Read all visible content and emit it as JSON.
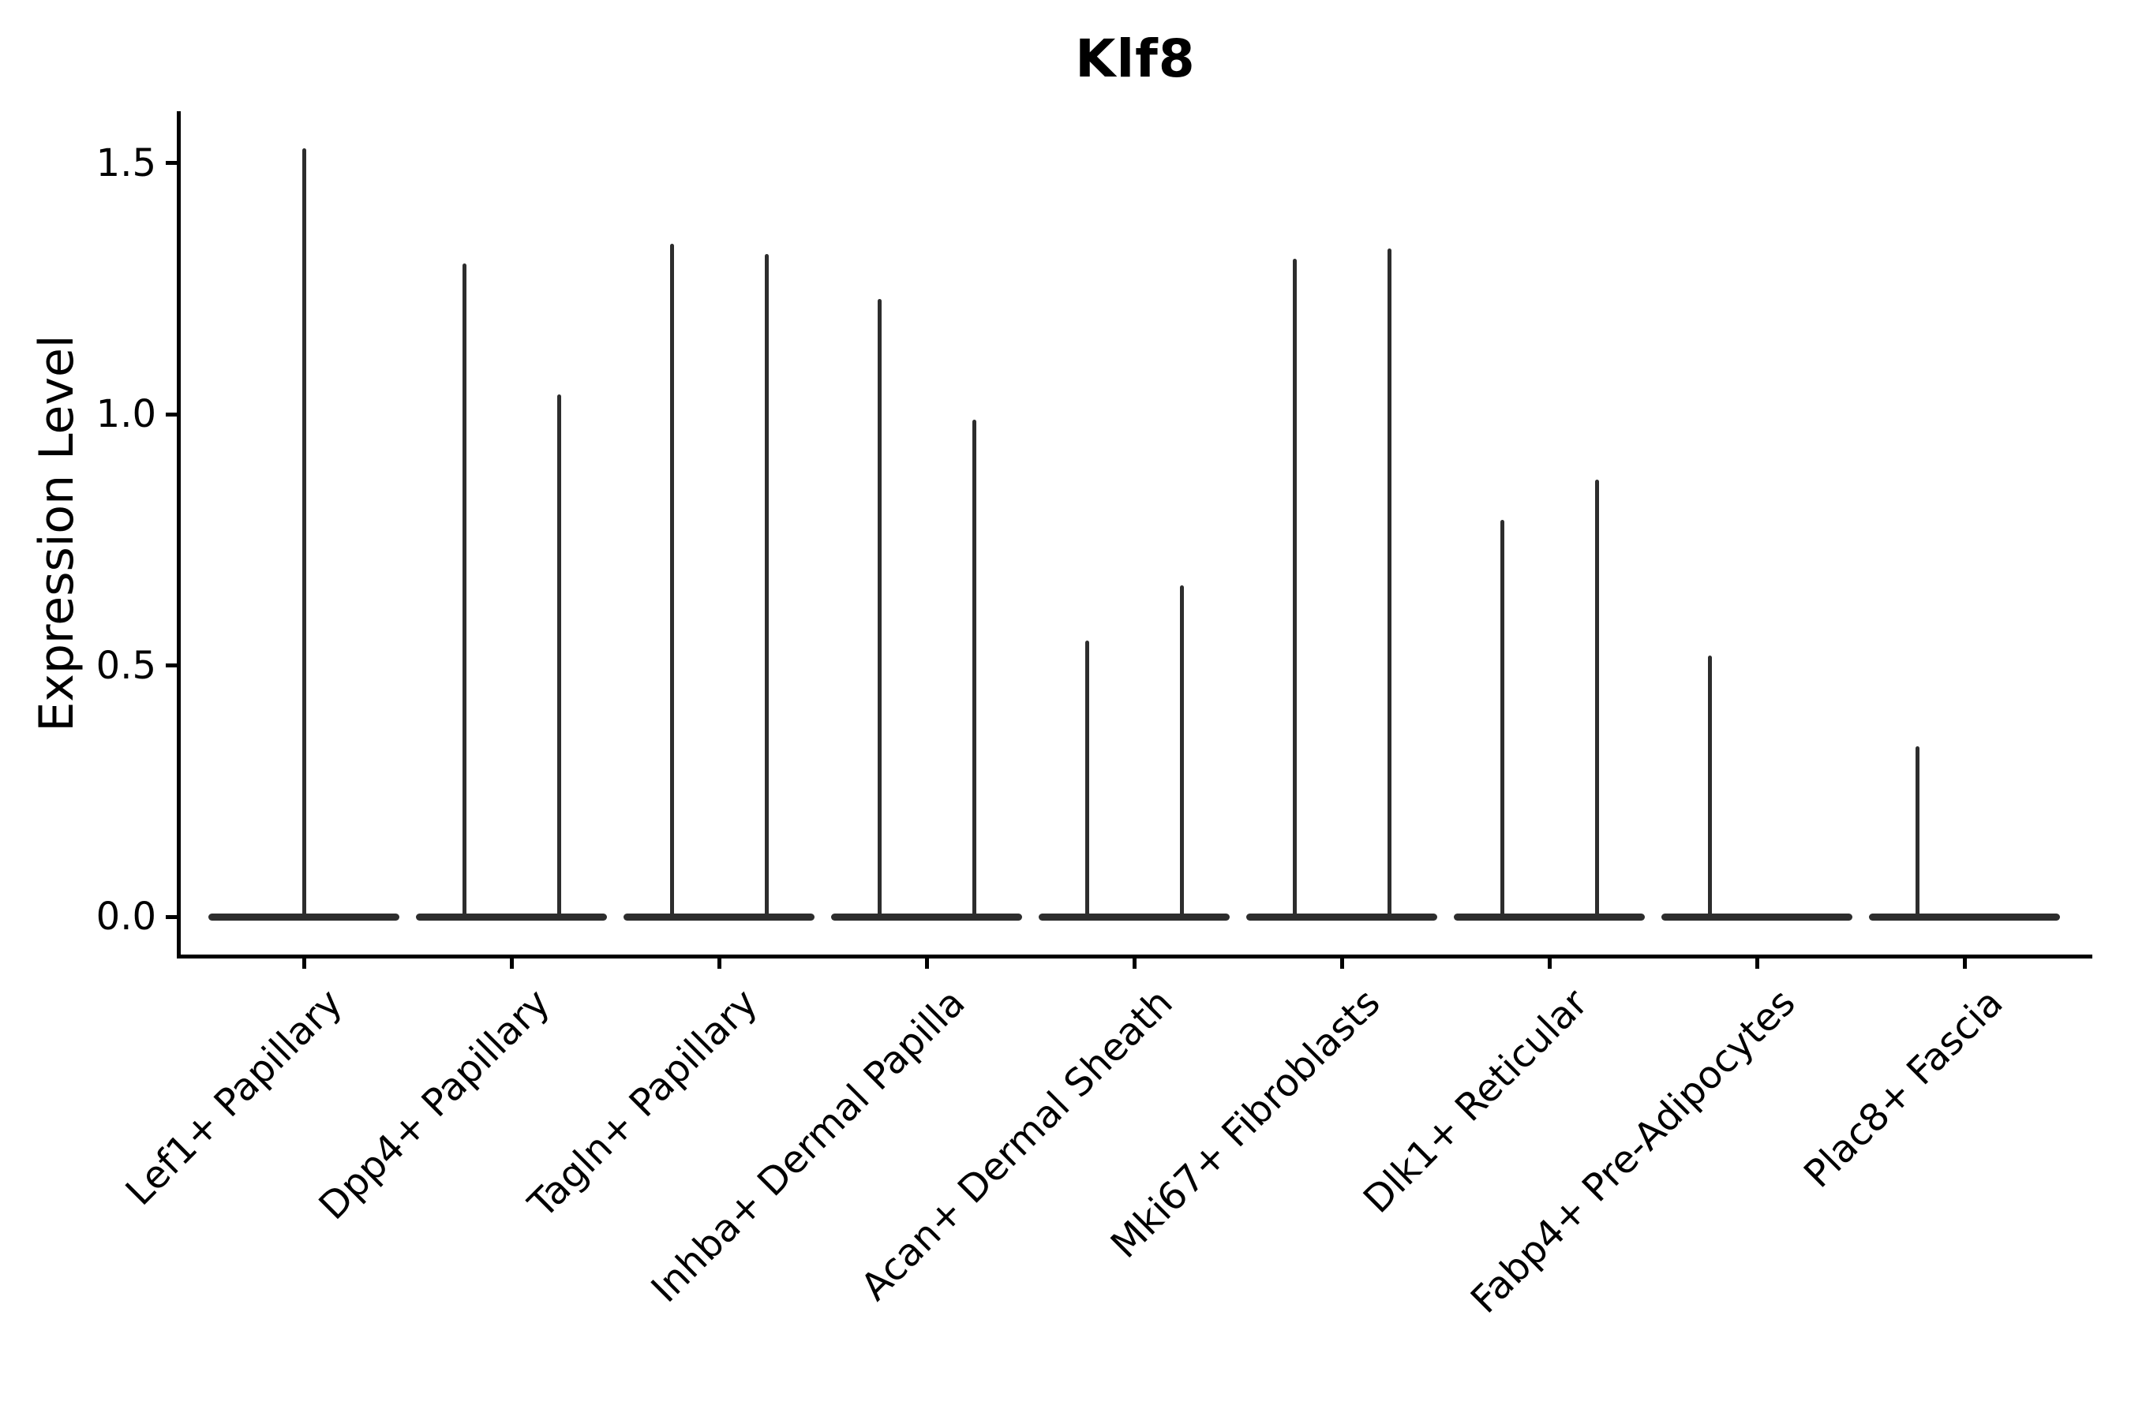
{
  "title": "Klf8",
  "chart_data": {
    "type": "violin",
    "title": "Klf8",
    "xlabel": "",
    "ylabel": "Expression Level",
    "ylim": [
      -0.08,
      1.61
    ],
    "yticks": [
      0.0,
      0.5,
      1.0,
      1.5
    ],
    "ytick_labels": [
      "0.0",
      "0.5",
      "1.0",
      "1.5"
    ],
    "grid": false,
    "legend": "none",
    "x_label_rotation_deg": 45,
    "categories": [
      "Lef1+ Papillary",
      "Dpp4+ Papillary",
      "Tagln+ Papillary",
      "Inhba+ Dermal Papilla",
      "Acan+ Dermal Sheath",
      "Mki67+ Fibroblasts",
      "Dlk1+ Reticular",
      "Fabp4+ Pre-Adipocytes",
      "Plac8+ Fascia"
    ],
    "series": [
      {
        "category": "Lef1+ Papillary",
        "violins": [
          {
            "position": "center",
            "max_expression": 1.53
          }
        ]
      },
      {
        "category": "Dpp4+ Papillary",
        "violins": [
          {
            "position": "left",
            "max_expression": 1.3
          },
          {
            "position": "right",
            "max_expression": 1.04
          }
        ]
      },
      {
        "category": "Tagln+ Papillary",
        "violins": [
          {
            "position": "left",
            "max_expression": 1.34
          },
          {
            "position": "right",
            "max_expression": 1.32
          }
        ]
      },
      {
        "category": "Inhba+ Dermal Papilla",
        "violins": [
          {
            "position": "left",
            "max_expression": 1.23
          },
          {
            "position": "right",
            "max_expression": 0.99
          }
        ]
      },
      {
        "category": "Acan+ Dermal Sheath",
        "violins": [
          {
            "position": "left",
            "max_expression": 0.55
          },
          {
            "position": "right",
            "max_expression": 0.66
          }
        ]
      },
      {
        "category": "Mki67+ Fibroblasts",
        "violins": [
          {
            "position": "left",
            "max_expression": 1.31
          },
          {
            "position": "right",
            "max_expression": 1.33
          }
        ]
      },
      {
        "category": "Dlk1+ Reticular",
        "violins": [
          {
            "position": "left",
            "max_expression": 0.79
          },
          {
            "position": "right",
            "max_expression": 0.87
          }
        ]
      },
      {
        "category": "Fabp4+ Pre-Adipocytes",
        "violins": [
          {
            "position": "left",
            "max_expression": 0.52
          }
        ]
      },
      {
        "category": "Plac8+ Fascia",
        "violins": [
          {
            "position": "left",
            "max_expression": 0.34
          }
        ]
      }
    ],
    "density_concentrated_at_zero": true,
    "colors": {
      "violin": "#2d2d2d",
      "axis": "#000000",
      "background": "#ffffff"
    }
  }
}
